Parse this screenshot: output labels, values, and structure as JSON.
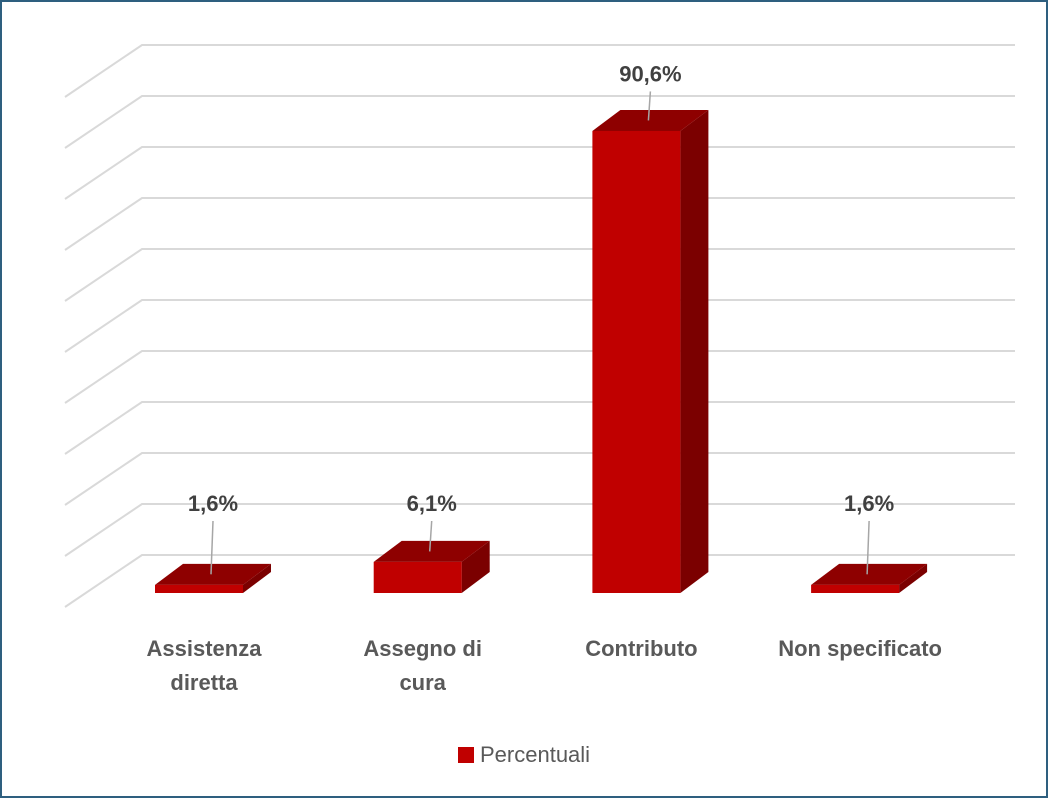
{
  "chart_data": {
    "type": "bar3d",
    "categories": [
      "Assistenza diretta",
      "Assegno di cura",
      "Contributo",
      "Non specificato"
    ],
    "series": [
      {
        "name": "Percentuali",
        "color": "#c00000",
        "values": [
          1.6,
          6.1,
          90.6,
          1.6
        ],
        "value_labels": [
          "1,6%",
          "6,1%",
          "90,6%",
          "1,6%"
        ]
      }
    ],
    "ylim": [
      0,
      100
    ],
    "yticks": [
      0,
      10,
      20,
      30,
      40,
      50,
      60,
      70,
      80,
      90,
      100
    ],
    "grid": true,
    "legend": "bottom"
  }
}
